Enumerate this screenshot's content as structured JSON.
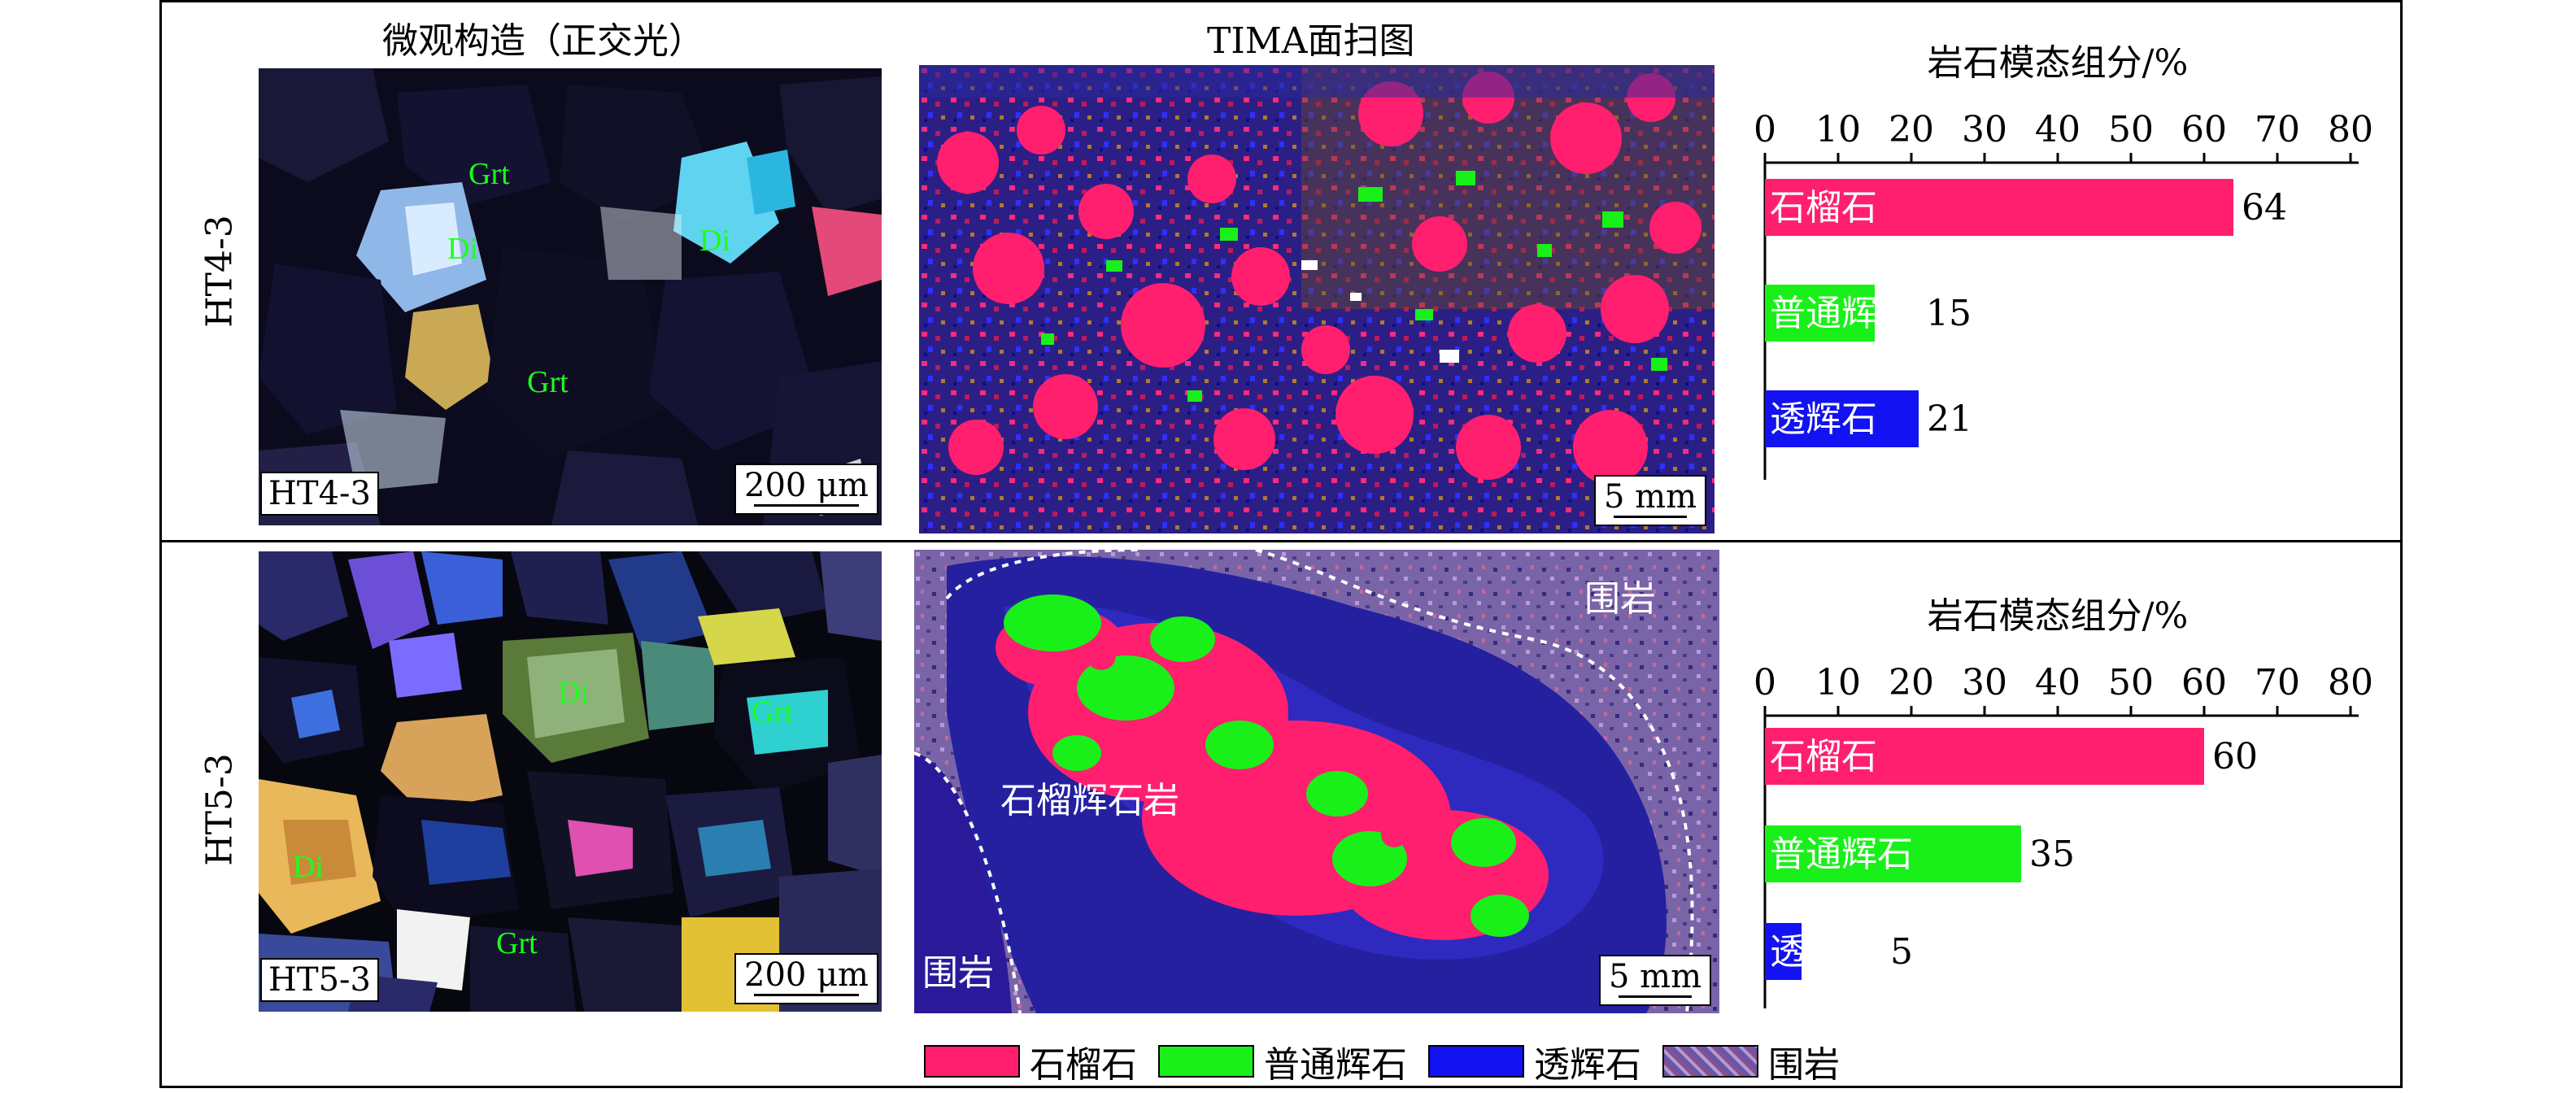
{
  "headers": {
    "micro": "微观构造（正交光）",
    "tima": "TIMA面扫图"
  },
  "rows": [
    {
      "id": "HT4-3",
      "label": "HT4-3",
      "micro_tag": "HT4-3",
      "micro_scale": "200 μm",
      "tima_scale": "5 mm",
      "mineral_labels": [
        "Grt",
        "Di",
        "Di",
        "Grt"
      ],
      "map_labels": []
    },
    {
      "id": "HT5-3",
      "label": "HT5-3",
      "micro_tag": "HT5-3",
      "micro_scale": "200 μm",
      "tima_scale": "5 mm",
      "mineral_labels": [
        "Di",
        "Grt",
        "Di",
        "Grt"
      ],
      "map_labels": [
        "围岩",
        "石榴辉石岩",
        "围岩"
      ]
    }
  ],
  "legend": [
    {
      "label": "石榴石",
      "color": "#ff1f6e"
    },
    {
      "label": "普通辉石",
      "color": "#19f019"
    },
    {
      "label": "透辉石",
      "color": "#1212f2"
    },
    {
      "label": "围岩",
      "color": "#8a6fb6"
    }
  ],
  "chart_data": [
    {
      "type": "bar",
      "orientation": "horizontal",
      "title": "岩石模态组分/%",
      "xlim": [
        0,
        80
      ],
      "xticks": [
        0,
        10,
        20,
        30,
        40,
        50,
        60,
        70,
        80
      ],
      "categories": [
        "石榴石",
        "普通辉石",
        "透辉石"
      ],
      "values": [
        64,
        15,
        21
      ],
      "value_labels": [
        "64",
        "15",
        "21"
      ],
      "colors": [
        "#ff1f6e",
        "#19f019",
        "#1212f2"
      ]
    },
    {
      "type": "bar",
      "orientation": "horizontal",
      "title": "岩石模态组分/%",
      "xlim": [
        0,
        80
      ],
      "xticks": [
        0,
        10,
        20,
        30,
        40,
        50,
        60,
        70,
        80
      ],
      "categories": [
        "石榴石",
        "普通辉石",
        "透辉石"
      ],
      "values": [
        60,
        35,
        5
      ],
      "value_labels": [
        "60",
        "35",
        "5"
      ],
      "colors": [
        "#ff1f6e",
        "#19f019",
        "#1212f2"
      ]
    }
  ]
}
